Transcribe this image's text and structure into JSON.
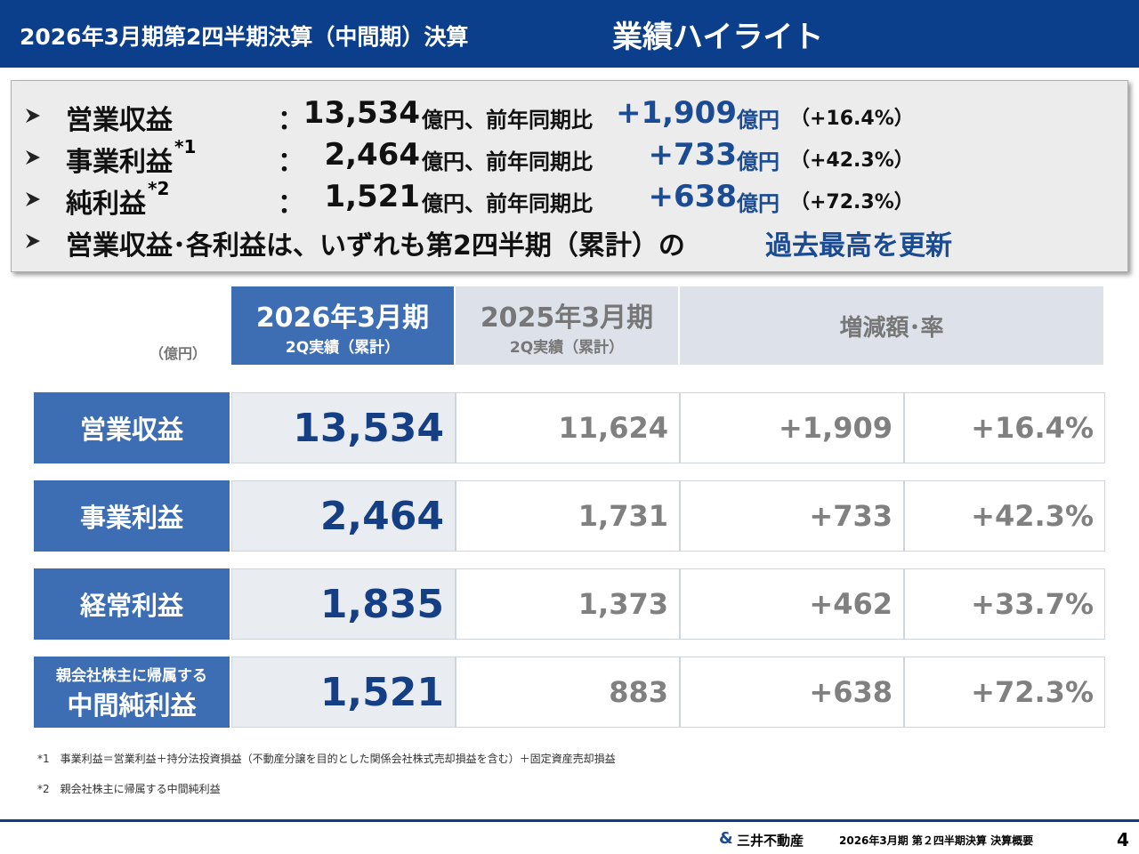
{
  "header": {
    "title": "2026年3月期第2四半期決算（中間期）決算",
    "subtitle": "業績ハイライト"
  },
  "highlights": {
    "items": [
      {
        "label": "営業収益",
        "colon": "：",
        "value": "13,534",
        "unit": "億円、前年同期比",
        "change": "+1,909",
        "change_unit": "億円",
        "rate": "（+16.4%）"
      },
      {
        "label": "事業利益",
        "note": "*1",
        "colon": "：",
        "value": "2,464",
        "unit": "億円、前年同期比",
        "change": "+733",
        "change_unit": "億円",
        "rate": "（+42.3%）"
      },
      {
        "label": "純利益",
        "note": "*2",
        "colon": "：",
        "value": "1,521",
        "unit": "億円、前年同期比",
        "change": "+638",
        "change_unit": "億円",
        "rate": "（+72.3%）"
      }
    ],
    "summary": {
      "text": "営業収益･各利益は、いずれも第2四半期（累計）の",
      "emphasis": "過去最高を更新"
    }
  },
  "table": {
    "unit": "（億円）",
    "columns": [
      {
        "main": "2026年3月期",
        "sub": "2Q実績（累計）"
      },
      {
        "main": "2025年3月期",
        "sub": "2Q実績（累計）"
      },
      {
        "main": "増減額･率"
      }
    ],
    "rows": [
      {
        "label": "営業収益",
        "values": [
          "13,534",
          "11,624",
          "+1,909",
          "+16.4%"
        ]
      },
      {
        "label": "事業利益",
        "values": [
          "2,464",
          "1,731",
          "+733",
          "+42.3%"
        ]
      },
      {
        "label": "経常利益",
        "values": [
          "1,835",
          "1,373",
          "+462",
          "+33.7%"
        ]
      },
      {
        "label_prefix": "親会社株主に帰属する",
        "label": "中間純利益",
        "values": [
          "1,521",
          "883",
          "+638",
          "+72.3%"
        ]
      }
    ]
  },
  "footnotes": [
    "*1　事業利益＝営業利益＋持分法投資損益（不動産分譲を目的とした関係会社株式売却損益を含む）＋固定資産売却損益",
    "*2　親会社株主に帰属する中間純利益"
  ],
  "footer": {
    "company": "三井不動産",
    "document": "2026年3月期 第２四半期決算 決算概要",
    "page": "4"
  }
}
